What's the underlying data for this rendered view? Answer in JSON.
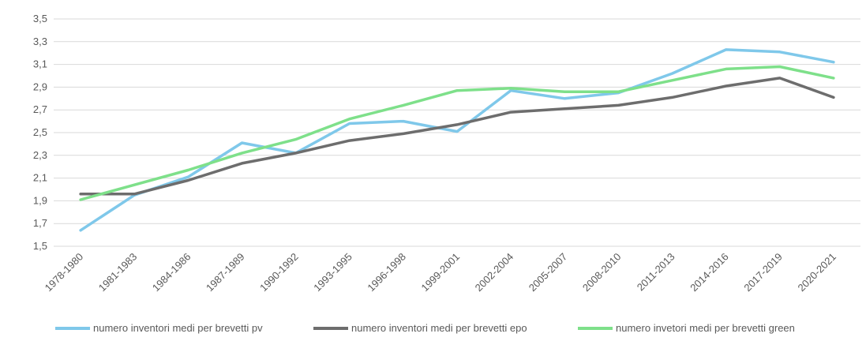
{
  "chart_data": {
    "type": "line",
    "categories": [
      "1978-1980",
      "1981-1983",
      "1984-1986",
      "1987-1989",
      "1990-1992",
      "1993-1995",
      "1996-1998",
      "1999-2001",
      "2002-2004",
      "2005-2007",
      "2008-2010",
      "2011-2013",
      "2014-2016",
      "2017-2019",
      "2020-2021"
    ],
    "ylim": [
      1.5,
      3.5
    ],
    "yticks": [
      "1,5",
      "1,7",
      "1,9",
      "2,1",
      "2,3",
      "2,5",
      "2,7",
      "2,9",
      "3,1",
      "3,3",
      "3,5"
    ],
    "grid": true,
    "legend_position": "bottom",
    "series": [
      {
        "name": "numero inventori medi per brevetti pv",
        "color": "#7fc8ea",
        "values": [
          1.64,
          1.95,
          2.11,
          2.41,
          2.32,
          2.58,
          2.6,
          2.51,
          2.87,
          2.8,
          2.85,
          3.02,
          3.23,
          3.21,
          3.12
        ]
      },
      {
        "name": "numero inventori medi per brevetti epo",
        "color": "#6d6d6d",
        "values": [
          1.96,
          1.96,
          2.08,
          2.23,
          2.32,
          2.43,
          2.49,
          2.57,
          2.68,
          2.71,
          2.74,
          2.81,
          2.91,
          2.98,
          2.81
        ]
      },
      {
        "name": "numero invetori medi per brevetti green",
        "color": "#7ee08a",
        "values": [
          1.91,
          2.04,
          2.17,
          2.32,
          2.44,
          2.62,
          2.74,
          2.87,
          2.89,
          2.86,
          2.86,
          2.96,
          3.06,
          3.08,
          2.98
        ]
      }
    ]
  }
}
